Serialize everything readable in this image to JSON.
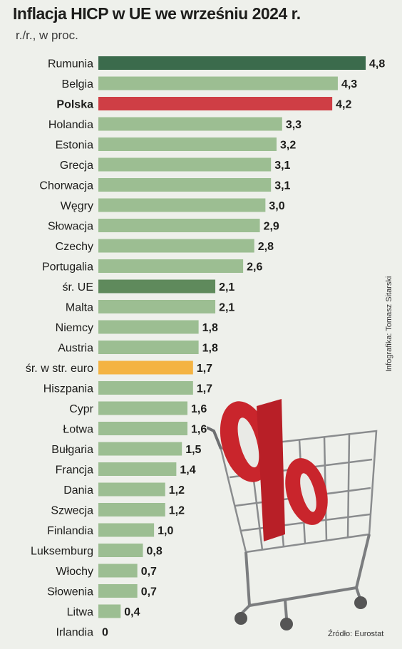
{
  "chart_data": {
    "type": "bar",
    "orientation": "horizontal",
    "title": "Inflacja HICP w UE we wrześniu 2024 r.",
    "subtitle": "r./r., w proc.",
    "xlim": [
      0,
      4.8
    ],
    "categories": [
      "Rumunia",
      "Belgia",
      "Polska",
      "Holandia",
      "Estonia",
      "Grecja",
      "Chorwacja",
      "Węgry",
      "Słowacja",
      "Czechy",
      "Portugalia",
      "śr. UE",
      "Malta",
      "Niemcy",
      "Austria",
      "śr. w str. euro",
      "Hiszpania",
      "Cypr",
      "Łotwa",
      "Bułgaria",
      "Francja",
      "Dania",
      "Szwecja",
      "Finlandia",
      "Luksemburg",
      "Włochy",
      "Słowenia",
      "Litwa",
      "Irlandia"
    ],
    "values": [
      4.8,
      4.3,
      4.2,
      3.3,
      3.2,
      3.1,
      3.1,
      3.0,
      2.9,
      2.8,
      2.6,
      2.1,
      2.1,
      1.8,
      1.8,
      1.7,
      1.7,
      1.6,
      1.6,
      1.5,
      1.4,
      1.2,
      1.2,
      1.0,
      0.8,
      0.7,
      0.7,
      0.4,
      0
    ],
    "value_labels": [
      "4,8",
      "4,3",
      "4,2",
      "3,3",
      "3,2",
      "3,1",
      "3,1",
      "3,0",
      "2,9",
      "2,8",
      "2,6",
      "2,1",
      "2,1",
      "1,8",
      "1,8",
      "1,7",
      "1,7",
      "1,6",
      "1,6",
      "1,5",
      "1,4",
      "1,2",
      "1,2",
      "1,0",
      "0,8",
      "0,7",
      "0,7",
      "0,4",
      "0"
    ],
    "highlight": {
      "Rumunia": "#3b6b4c",
      "Polska": "#cf3e45",
      "śr. UE": "#5f8a5c",
      "śr. w str. euro": "#f4b342"
    },
    "bold_categories": [
      "Polska"
    ],
    "default_color": "#9cbe92",
    "grid": false,
    "legend": "none"
  },
  "credit": "Infografika: Tomasz Sitarski",
  "source": "Źródło: Eurostat",
  "illustration": {
    "icon": "shopping-cart-with-percent-icon"
  }
}
